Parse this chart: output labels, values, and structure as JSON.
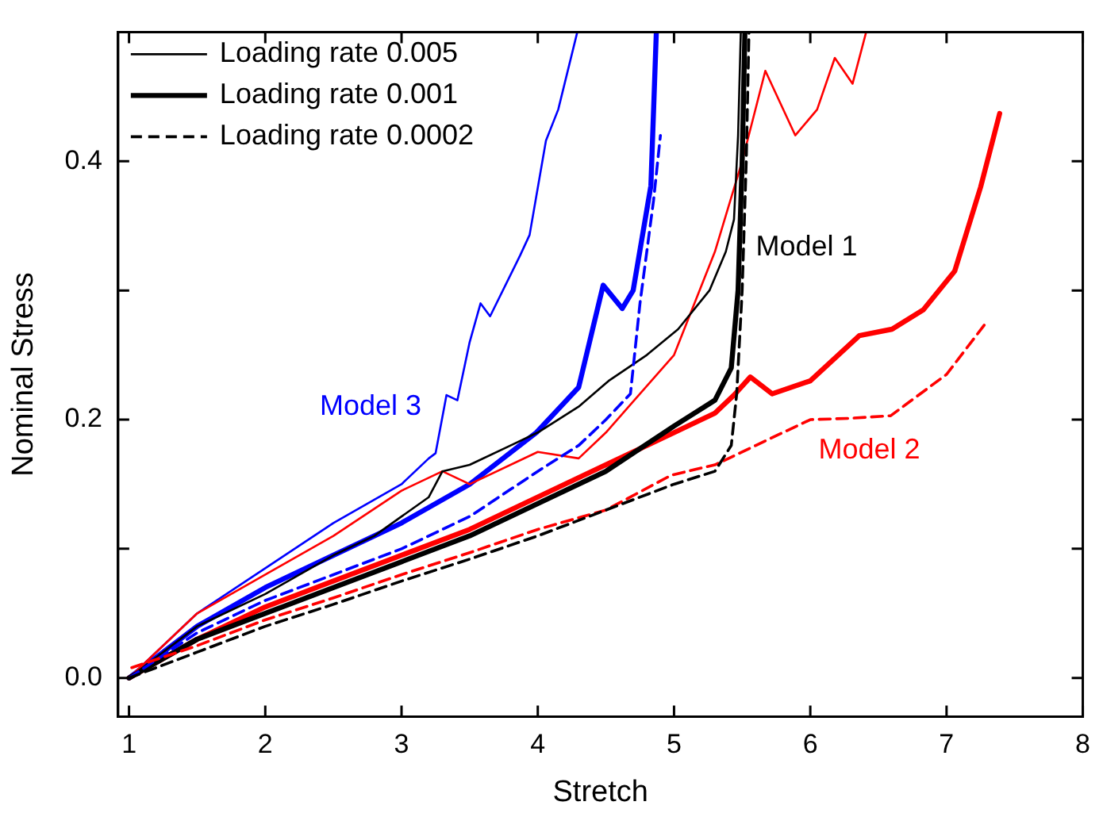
{
  "chart_data": {
    "type": "line",
    "xlabel": "Stretch",
    "ylabel": "Nominal Stress",
    "xlim": [
      0.92,
      8
    ],
    "ylim": [
      -0.03,
      0.5
    ],
    "xticks": [
      1,
      2,
      3,
      4,
      5,
      6,
      7,
      8
    ],
    "yticks": [
      {
        "value": 0,
        "label": "0.0"
      },
      {
        "value": 0.1,
        "label": null
      },
      {
        "value": 0.2,
        "label": "0.2"
      },
      {
        "value": 0.3,
        "label": null
      },
      {
        "value": 0.4,
        "label": "0.4"
      }
    ],
    "grid": false,
    "legend": "top left",
    "marker": "none",
    "annotations": [
      "Model 1",
      "Model 2",
      "Model 3"
    ],
    "series": [
      {
        "name": "Loading rate 0.005",
        "color": "#000000",
        "line_style": "solid",
        "x": [
          1,
          1.5,
          2,
          2.5,
          2.8,
          3,
          3.2,
          3.3,
          3.5,
          3.8,
          4,
          4.3,
          4.52,
          4.8,
          5.03,
          5.26,
          5.38,
          5.44,
          5.47,
          5.49
        ],
        "values": [
          0,
          0.04,
          0.065,
          0.095,
          0.11,
          0.125,
          0.14,
          0.16,
          0.165,
          0.18,
          0.19,
          0.21,
          0.23,
          0.25,
          0.27,
          0.3,
          0.33,
          0.355,
          0.42,
          0.5
        ]
      },
      {
        "name": "Loading rate 0.001",
        "color": "#000000",
        "line_style": "solid",
        "x": [
          1,
          1.5,
          2,
          2.5,
          3,
          3.5,
          4,
          4.5,
          5,
          5.3,
          5.42,
          5.47,
          5.5,
          5.52
        ],
        "values": [
          0,
          0.03,
          0.05,
          0.07,
          0.09,
          0.11,
          0.135,
          0.16,
          0.195,
          0.215,
          0.24,
          0.3,
          0.4,
          0.5
        ]
      },
      {
        "name": "Loading rate 0.0002",
        "color": "#000000",
        "line_style": "dashed",
        "x": [
          1,
          1.5,
          2,
          2.5,
          3,
          3.5,
          4,
          4.5,
          5,
          5.3,
          5.42,
          5.46,
          5.5,
          5.53,
          5.55
        ],
        "values": [
          0,
          0.02,
          0.04,
          0.057,
          0.075,
          0.092,
          0.11,
          0.13,
          0.15,
          0.16,
          0.18,
          0.22,
          0.3,
          0.4,
          0.5
        ]
      },
      {
        "color": "#ff0000",
        "line_style": "solid",
        "x": [
          1,
          1.5,
          2,
          2.5,
          3,
          3.3,
          3.5,
          4,
          4.3,
          4.5,
          5,
          5.3,
          5.5,
          5.67,
          5.89,
          6.05,
          6.18,
          6.31,
          6.41
        ],
        "values": [
          0,
          0.05,
          0.08,
          0.11,
          0.145,
          0.16,
          0.15,
          0.175,
          0.17,
          0.19,
          0.25,
          0.33,
          0.4,
          0.47,
          0.42,
          0.44,
          0.48,
          0.46,
          0.5
        ]
      },
      {
        "color": "#ff0000",
        "line_style": "solid",
        "x": [
          1,
          1.5,
          2,
          2.5,
          3,
          3.5,
          4,
          4.5,
          5,
          5.3,
          5.44,
          5.56,
          5.72,
          6,
          6.36,
          6.6,
          6.83,
          7.06,
          7.25,
          7.39
        ],
        "values": [
          0,
          0.03,
          0.055,
          0.075,
          0.095,
          0.115,
          0.14,
          0.165,
          0.19,
          0.205,
          0.219,
          0.233,
          0.22,
          0.23,
          0.265,
          0.27,
          0.285,
          0.315,
          0.38,
          0.437
        ]
      },
      {
        "color": "#ff0000",
        "line_style": "dashed",
        "x": [
          1.02,
          1.5,
          2,
          2.5,
          3,
          3.5,
          4,
          4.5,
          4.98,
          5.3,
          5.6,
          6,
          6.29,
          6.59,
          7,
          7.29
        ],
        "values": [
          0.008,
          0.025,
          0.045,
          0.062,
          0.08,
          0.097,
          0.115,
          0.13,
          0.157,
          0.165,
          0.18,
          0.2,
          0.201,
          0.203,
          0.235,
          0.275
        ]
      },
      {
        "color": "#0000ff",
        "line_style": "solid",
        "x": [
          1,
          1.5,
          2,
          2.5,
          3,
          3.2,
          3.25,
          3.33,
          3.41,
          3.5,
          3.58,
          3.65,
          3.87,
          3.94,
          4.06,
          4.15,
          4.29
        ],
        "values": [
          0,
          0.05,
          0.085,
          0.12,
          0.15,
          0.17,
          0.174,
          0.219,
          0.215,
          0.26,
          0.29,
          0.28,
          0.327,
          0.343,
          0.416,
          0.44,
          0.5
        ]
      },
      {
        "color": "#0000ff",
        "line_style": "solid",
        "x": [
          1,
          1.5,
          2,
          2.5,
          3,
          3.5,
          3.99,
          4.3,
          4.48,
          4.62,
          4.7,
          4.83,
          4.85,
          4.87
        ],
        "values": [
          0,
          0.04,
          0.07,
          0.095,
          0.12,
          0.15,
          0.19,
          0.225,
          0.304,
          0.286,
          0.3,
          0.381,
          0.44,
          0.5
        ]
      },
      {
        "color": "#0000ff",
        "line_style": "dashed",
        "x": [
          1,
          1.5,
          2,
          2.5,
          3,
          3.5,
          4,
          4.3,
          4.5,
          4.68,
          4.75,
          4.85,
          4.9
        ],
        "values": [
          0,
          0.035,
          0.06,
          0.08,
          0.1,
          0.125,
          0.16,
          0.18,
          0.2,
          0.22,
          0.29,
          0.37,
          0.42
        ]
      }
    ]
  }
}
